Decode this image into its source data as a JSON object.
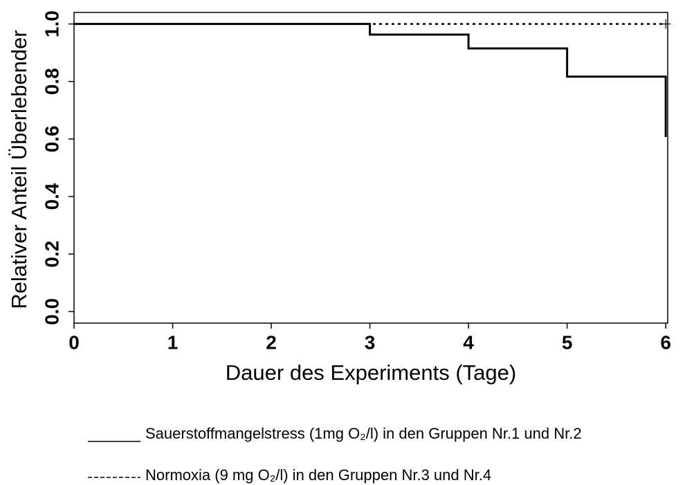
{
  "chart_data": {
    "type": "step",
    "xlabel": "Dauer des Experiments (Tage)",
    "ylabel": "Relativer Anteil Überlebender",
    "xlim": [
      0,
      6.02
    ],
    "ylim": [
      -0.04,
      1.04
    ],
    "xticks": [
      0,
      1,
      2,
      3,
      4,
      5,
      6
    ],
    "yticks": [
      {
        "value": 0,
        "label": "0.0"
      },
      0.2,
      0.4,
      0.6,
      0.8,
      {
        "value": 1,
        "label": "1.0"
      }
    ],
    "series": [
      {
        "name": "Sauerstoffmangelstress (1mg O₂/l) in den Gruppen Nr.1 und Nr.2",
        "color": "#000000",
        "style": "solid",
        "x": [
          0,
          3,
          4,
          5,
          6
        ],
        "values": [
          1,
          0.963,
          0.915,
          0.817,
          0.607
        ]
      },
      {
        "name": "Normoxia (9 mg O₂/l) in den Gruppen Nr.3 und Nr.4",
        "color": "#000000",
        "style": "dotted",
        "x": [
          0,
          6
        ],
        "values": [
          1,
          1
        ],
        "censored": [
          6
        ]
      }
    ]
  }
}
